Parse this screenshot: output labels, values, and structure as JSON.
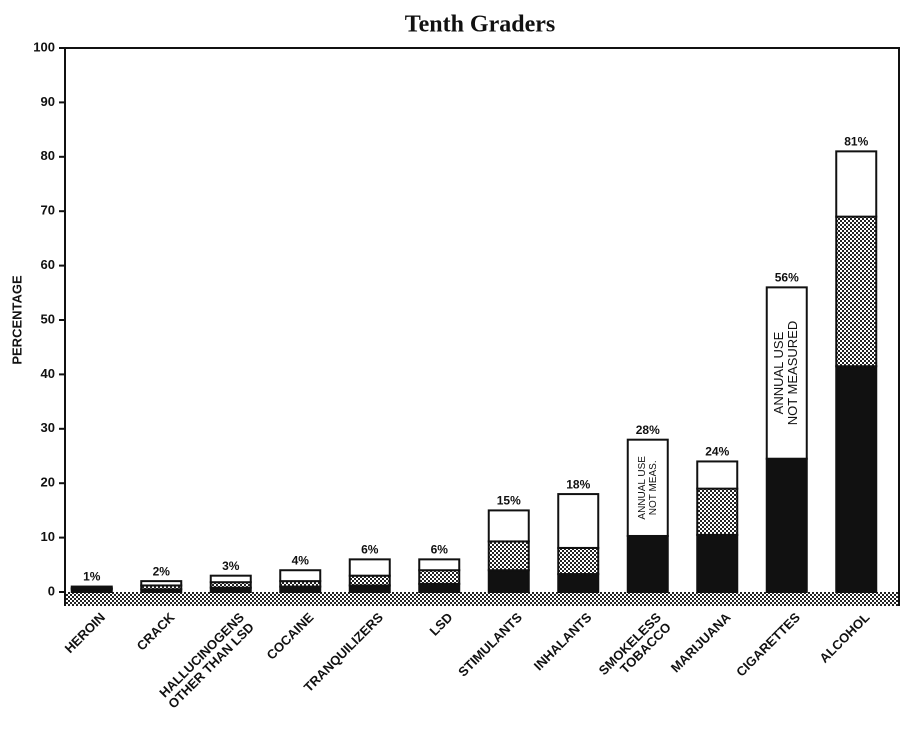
{
  "chart_data": {
    "type": "stacked_bar",
    "title": "Tenth Graders",
    "y_label": "PERCENTAGE",
    "categories": [
      "HEROIN",
      "CRACK",
      "HALLUCINOGENS\nOTHER THAN LSD",
      "COCAINE",
      "TRANQUILIZERS",
      "LSD",
      "STIMULANTS",
      "INHALANTS",
      "SMOKELESS\nTOBACCO",
      "MARIJUANA",
      "CIGARETTES",
      "ALCOHOL"
    ],
    "series": [
      {
        "color": "#111111",
        "values": [
          0.5,
          0.5,
          0.8,
          1,
          1.2,
          1.5,
          4,
          3.3,
          10.3,
          10.5,
          24.5,
          41.5
        ]
      },
      {
        "color": "#111111",
        "pattern": "dots",
        "values": [
          0.2,
          0.7,
          1,
          1,
          1.8,
          2.5,
          5.3,
          4.8,
          0,
          8.5,
          0,
          27.5
        ]
      },
      {
        "color": "#ffffff",
        "values": [
          0.3,
          0.8,
          1.2,
          2,
          3,
          2,
          5.7,
          9.9,
          17.7,
          5,
          31.5,
          12
        ]
      }
    ],
    "totals": [
      1,
      2,
      3,
      4,
      6,
      6,
      15,
      18,
      28,
      24,
      56,
      81
    ],
    "total_labels": [
      "1%",
      "2%",
      "3%",
      "4%",
      "6%",
      "6%",
      "15%",
      "18%",
      "28%",
      "24%",
      "56%",
      "81%"
    ],
    "annotations": [
      {
        "category": 8,
        "lines": [
          "ANNUAL USE",
          "NOT MEAS."
        ]
      },
      {
        "category": 10,
        "lines": [
          "ANNUAL USE",
          "NOT MEASURED"
        ]
      }
    ],
    "ylim": [
      0,
      100
    ],
    "yticks": [
      0,
      10,
      20,
      30,
      40,
      50,
      60,
      70,
      80,
      90,
      100
    ]
  }
}
